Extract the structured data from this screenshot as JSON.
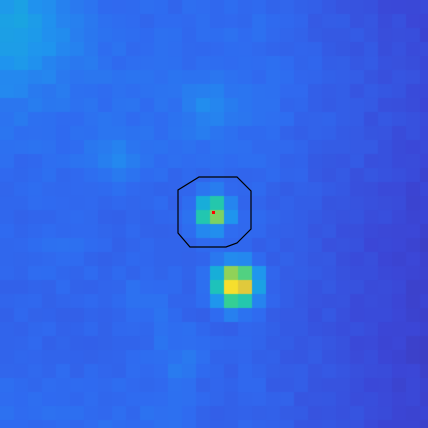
{
  "image": {
    "kind": "astronomical-cutout-heatmap",
    "colormap": [
      "#3f2fa0",
      "#3b46d6",
      "#2f6bf0",
      "#1f95ee",
      "#14b9cf",
      "#2dcf9a",
      "#8bd35a",
      "#e6c83a",
      "#fbe52a"
    ],
    "annotation": {
      "shape": "octagon",
      "stroke": "#000000",
      "center_marker": "#ff0000"
    }
  }
}
